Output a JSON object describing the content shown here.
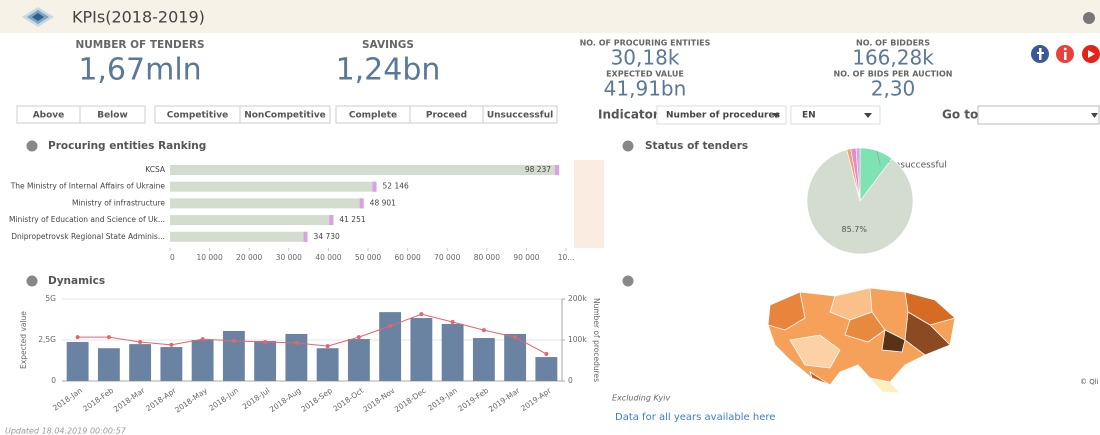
{
  "header": {
    "title": "KPIs(2018-2019)"
  },
  "kpis": [
    {
      "label": "NUMBER OF TENDERS",
      "value": "1,67mln"
    },
    {
      "label": "SAVINGS",
      "value": "1,24bn"
    },
    {
      "label": "NO. OF PROCURING ENTITIES",
      "value": "30,18k"
    },
    {
      "label": "EXPECTED VALUE",
      "value": "41,91bn"
    },
    {
      "label": "NO. OF BIDDERS",
      "value": "166,28k"
    },
    {
      "label": "NO. OF BIDS PER AUCTION",
      "value": "2,30"
    }
  ],
  "filters": {
    "buttons": [
      "Above",
      "Below",
      "Competitive",
      "NonCompetitive",
      "Complete",
      "Proceed",
      "Unsuccessful"
    ],
    "indicator_label": "Indicator",
    "indicator": "Number of procedures",
    "language": "EN",
    "goto_label": "Go to"
  },
  "chart_data": [
    {
      "type": "hbar",
      "title": "Procuring entities Ranking",
      "categories": [
        "KCSA",
        "The Ministry of Internal Affairs of Ukraine",
        "Ministry of infrastructure",
        "Ministry of Education and Science of Uk...",
        "Dnipropetrovsk Regional State Adminis..."
      ],
      "values": [
        98237,
        52146,
        48901,
        41251,
        34730
      ],
      "value_labels": [
        "98 237",
        "52 146",
        "48 901",
        "41 251",
        "34 730"
      ],
      "color": "#d4dccf",
      "xlim": [
        0,
        101500
      ],
      "xticks": [
        0,
        {
          "value": 10000,
          "label": "10 000"
        },
        {
          "value": 20000,
          "label": "20 000"
        },
        {
          "value": 30000,
          "label": "30 000"
        },
        {
          "value": 40000,
          "label": "40 000"
        },
        {
          "value": 50000,
          "label": "50 000"
        },
        {
          "value": 60000,
          "label": "60 000"
        },
        {
          "value": 70000,
          "label": "70 000"
        },
        {
          "value": 80000,
          "label": "80 000"
        },
        {
          "value": 90000,
          "label": "90 000"
        },
        {
          "value": 100000,
          "label": "10..."
        }
      ]
    },
    {
      "type": "pie",
      "title": "Status of tenders",
      "categories": [
        "Unsuccessful",
        null,
        null,
        null,
        null
      ],
      "values": [
        10.3,
        85.7,
        1.2,
        1.6,
        1.2
      ],
      "value_labels": [
        null,
        "85.7%",
        null,
        null,
        null
      ],
      "colors": [
        "#7ee2b2",
        "#d4dccf",
        "#f2a07b",
        "#e48cc4",
        "#d7a3e0"
      ]
    },
    {
      "type": "combo",
      "title": "Dynamics",
      "categories": [
        "2018-Jan",
        "2018-Feb",
        "2018-Mar",
        "2018-Apr",
        "2018-May",
        "2018-Jun",
        "2018-Jul",
        "2018-Aug",
        "2018-Sep",
        "2018-Oct",
        "2018-Nov",
        "2018-Dec",
        "2019-Jan",
        "2019-Feb",
        "2019-Mar",
        "2019-Apr"
      ],
      "series": [
        {
          "name": "Expected value",
          "color": "#6b83a3",
          "values": [
            2.38,
            2.0,
            2.25,
            2.07,
            2.5,
            3.05,
            2.44,
            2.87,
            2.0,
            2.56,
            4.2,
            3.84,
            3.48,
            2.62,
            2.87,
            1.46
          ]
        },
        {
          "name": "Number of procedures",
          "color": "#e8636a",
          "axis": "y2",
          "values": [
            107000,
            107000,
            95000,
            88000,
            102000,
            98000,
            95000,
            93000,
            85000,
            107000,
            134000,
            163000,
            144000,
            124000,
            107000,
            66000
          ]
        }
      ],
      "ylim": [
        0,
        5
      ],
      "yticks": [
        0,
        {
          "value": 2.5,
          "label": "2,5G"
        },
        {
          "value": 5,
          "label": "5G"
        }
      ],
      "y2lim": [
        0,
        200000
      ],
      "y2ticks": [
        0,
        {
          "value": 100000,
          "label": "100k"
        },
        {
          "value": 200000,
          "label": "200k"
        }
      ],
      "grid": true
    }
  ],
  "map": {
    "note": "Excluding Kyiv",
    "link": "Data for all years available here",
    "credit": "© Qli"
  },
  "footer": {
    "updated": "Updated 18.04.2019 00:00:57"
  }
}
